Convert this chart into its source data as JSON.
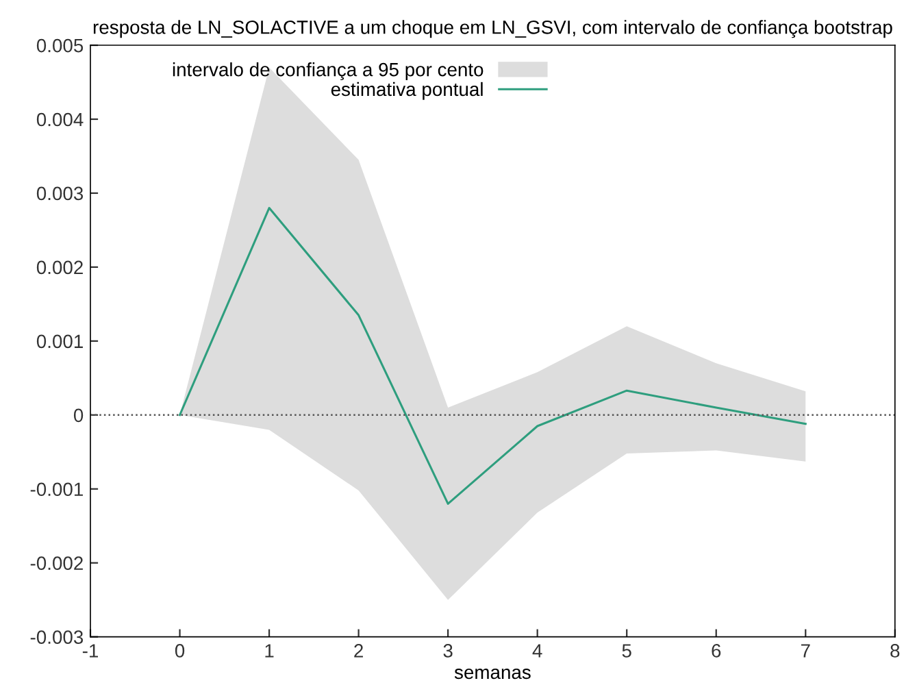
{
  "chart_data": {
    "type": "line",
    "title": "resposta de LN_SOLACTIVE a um choque em LN_GSVI, com intervalo de confiança bootstrap",
    "xlabel": "semanas",
    "x": [
      0,
      1,
      2,
      3,
      4,
      5,
      6,
      7
    ],
    "series": [
      {
        "name": "intervalo de confiança a 95 por cento",
        "type": "area",
        "color": "#dddddd",
        "values": [
          null,
          null,
          null,
          null,
          null,
          null,
          null,
          null
        ],
        "lower": [
          0,
          -0.0002,
          -0.00102,
          -0.0025,
          -0.00132,
          -0.00052,
          -0.00048,
          -0.00063
        ],
        "upper": [
          0,
          0.0047,
          0.00345,
          0.0001,
          0.00058,
          0.0012,
          0.0007,
          0.00032
        ]
      },
      {
        "name": "estimativa pontual",
        "color": "#2e9e7e",
        "values": [
          0,
          0.0028,
          0.00135,
          -0.0012,
          -0.00015,
          0.00033,
          0.0001,
          -0.00012
        ]
      }
    ],
    "xlim": [
      -1,
      8
    ],
    "xticks": [
      -1,
      0,
      1,
      2,
      3,
      4,
      5,
      6,
      7,
      8
    ],
    "ylim": [
      -0.003,
      0.005
    ],
    "yticks": [
      -0.003,
      -0.002,
      -0.001,
      0,
      0.001,
      0.002,
      0.003,
      0.004,
      0.005
    ],
    "ref_lines": [
      {
        "axis": "y",
        "value": 0,
        "color": "#555555",
        "line_style": "dotted"
      }
    ],
    "grid": false,
    "legend": "top left",
    "line_style": "solid",
    "marker": "none"
  }
}
